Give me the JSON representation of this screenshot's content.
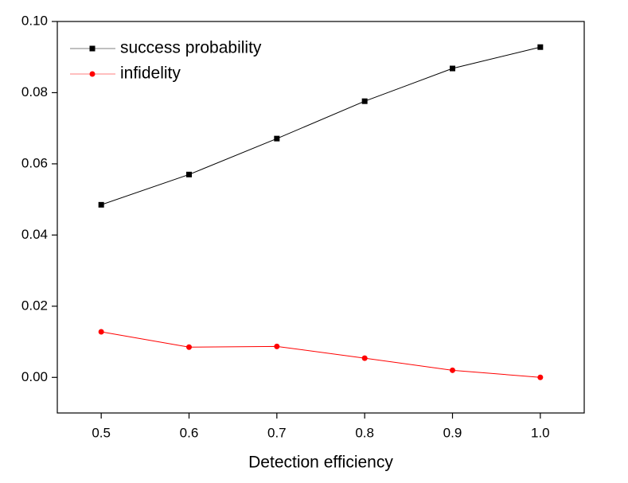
{
  "chart_data": {
    "type": "line",
    "x_label": "Detection efficiency",
    "x": [
      0.5,
      0.6,
      0.7,
      0.8,
      0.9,
      1.0
    ],
    "series": [
      {
        "name": "success probability",
        "color": "#000000",
        "marker": "square",
        "values": [
          0.0485,
          0.057,
          0.0671,
          0.0776,
          0.0868,
          0.0928
        ]
      },
      {
        "name": "infidelity",
        "color": "#ff0000",
        "marker": "circle",
        "values": [
          0.0128,
          0.0085,
          0.0087,
          0.0054,
          0.002,
          0.0
        ]
      }
    ],
    "xlim": [
      0.45,
      1.05
    ],
    "xticks": [
      0.5,
      0.6,
      0.7,
      0.8,
      0.9,
      {
        "value": 1.0,
        "label": "1.0"
      }
    ],
    "ylim": [
      -0.01,
      0.1
    ],
    "yticks": [
      {
        "value": 0,
        "label": "0.00"
      },
      0.02,
      0.04,
      0.06,
      0.08,
      {
        "value": 0.1,
        "label": "0.10"
      }
    ],
    "legend": "upper-left"
  }
}
